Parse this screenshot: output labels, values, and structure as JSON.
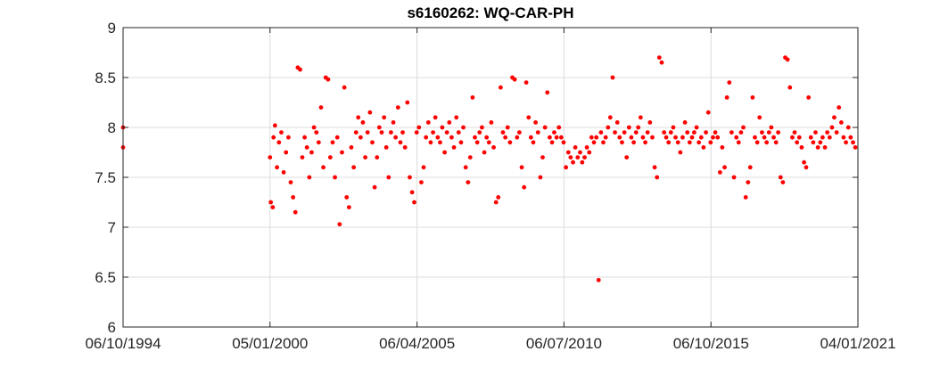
{
  "chart_data": {
    "type": "scatter",
    "title": "s6160262: WQ-CAR-PH",
    "xlabel": "",
    "ylabel": "",
    "xlim": [
      "1994-10-06",
      "2021-01-04"
    ],
    "ylim": [
      6,
      9
    ],
    "x_ticks": [
      "1994-10-06",
      "2000-01-05",
      "2005-04-06",
      "2010-07-06",
      "2015-10-06",
      "2021-01-04"
    ],
    "x_tick_labels": [
      "06/10/1994",
      "05/01/2000",
      "06/04/2005",
      "06/07/2010",
      "06/10/2015",
      "04/01/2021"
    ],
    "y_ticks": [
      6,
      6.5,
      7,
      7.5,
      8,
      8.5,
      9
    ],
    "y_tick_labels": [
      "6",
      "6.5",
      "7",
      "7.5",
      "8",
      "8.5",
      "9"
    ],
    "grid": true,
    "marker_color": "#ff0000",
    "series": [
      {
        "points": [
          [
            "1994-10-06",
            8.0
          ],
          [
            "1994-10-06",
            7.8
          ],
          [
            "2000-01-05",
            7.7
          ],
          [
            "2000-01-15",
            7.25
          ],
          [
            "2000-02-10",
            7.2
          ],
          [
            "2000-02-20",
            7.9
          ],
          [
            "2000-03-10",
            8.02
          ],
          [
            "2000-04-05",
            7.6
          ],
          [
            "2000-05-01",
            7.85
          ],
          [
            "2000-06-01",
            7.95
          ],
          [
            "2000-07-01",
            7.55
          ],
          [
            "2000-08-01",
            7.75
          ],
          [
            "2000-09-01",
            7.9
          ],
          [
            "2000-10-01",
            7.45
          ],
          [
            "2000-11-01",
            7.3
          ],
          [
            "2000-12-01",
            7.15
          ],
          [
            "2001-01-01",
            8.6
          ],
          [
            "2001-02-01",
            8.58
          ],
          [
            "2001-03-01",
            7.7
          ],
          [
            "2001-04-01",
            7.9
          ],
          [
            "2001-05-01",
            7.8
          ],
          [
            "2001-06-01",
            7.5
          ],
          [
            "2001-07-01",
            7.75
          ],
          [
            "2001-08-01",
            8.0
          ],
          [
            "2001-09-01",
            7.95
          ],
          [
            "2001-10-01",
            7.85
          ],
          [
            "2001-11-01",
            8.2
          ],
          [
            "2001-12-01",
            7.6
          ],
          [
            "2002-01-01",
            8.5
          ],
          [
            "2002-02-01",
            8.48
          ],
          [
            "2002-03-01",
            7.7
          ],
          [
            "2002-04-01",
            7.85
          ],
          [
            "2002-05-01",
            7.5
          ],
          [
            "2002-06-01",
            7.9
          ],
          [
            "2002-07-01",
            7.03
          ],
          [
            "2002-08-01",
            7.75
          ],
          [
            "2002-09-01",
            8.4
          ],
          [
            "2002-10-01",
            7.3
          ],
          [
            "2002-11-01",
            7.2
          ],
          [
            "2002-12-01",
            7.8
          ],
          [
            "2003-01-01",
            7.6
          ],
          [
            "2003-02-01",
            7.95
          ],
          [
            "2003-03-01",
            8.1
          ],
          [
            "2003-04-01",
            7.9
          ],
          [
            "2003-05-01",
            8.05
          ],
          [
            "2003-06-01",
            7.7
          ],
          [
            "2003-07-01",
            7.95
          ],
          [
            "2003-08-01",
            8.15
          ],
          [
            "2003-09-01",
            7.85
          ],
          [
            "2003-10-01",
            7.4
          ],
          [
            "2003-11-01",
            7.7
          ],
          [
            "2003-12-01",
            8.0
          ],
          [
            "2004-01-01",
            7.95
          ],
          [
            "2004-02-01",
            8.1
          ],
          [
            "2004-03-01",
            7.8
          ],
          [
            "2004-04-01",
            7.5
          ],
          [
            "2004-05-01",
            7.95
          ],
          [
            "2004-06-01",
            8.05
          ],
          [
            "2004-07-01",
            7.9
          ],
          [
            "2004-08-01",
            8.2
          ],
          [
            "2004-09-01",
            7.85
          ],
          [
            "2004-10-01",
            7.95
          ],
          [
            "2004-11-01",
            7.8
          ],
          [
            "2004-12-01",
            8.25
          ],
          [
            "2005-01-01",
            7.5
          ],
          [
            "2005-02-01",
            7.35
          ],
          [
            "2005-03-01",
            7.25
          ],
          [
            "2005-04-01",
            7.95
          ],
          [
            "2005-05-01",
            8.0
          ],
          [
            "2005-06-01",
            7.45
          ],
          [
            "2005-07-01",
            7.6
          ],
          [
            "2005-08-01",
            7.9
          ],
          [
            "2005-09-01",
            8.05
          ],
          [
            "2005-10-01",
            7.85
          ],
          [
            "2005-11-01",
            7.95
          ],
          [
            "2005-12-01",
            8.1
          ],
          [
            "2006-01-01",
            7.9
          ],
          [
            "2006-02-01",
            7.85
          ],
          [
            "2006-03-01",
            8.0
          ],
          [
            "2006-04-01",
            7.75
          ],
          [
            "2006-05-01",
            7.95
          ],
          [
            "2006-06-01",
            8.05
          ],
          [
            "2006-07-01",
            7.9
          ],
          [
            "2006-08-01",
            7.8
          ],
          [
            "2006-09-01",
            8.1
          ],
          [
            "2006-10-01",
            7.95
          ],
          [
            "2006-11-01",
            7.85
          ],
          [
            "2006-12-01",
            8.0
          ],
          [
            "2007-01-01",
            7.6
          ],
          [
            "2007-02-01",
            7.45
          ],
          [
            "2007-03-01",
            7.7
          ],
          [
            "2007-04-01",
            8.3
          ],
          [
            "2007-05-01",
            7.9
          ],
          [
            "2007-06-01",
            7.85
          ],
          [
            "2007-07-01",
            7.95
          ],
          [
            "2007-08-01",
            8.0
          ],
          [
            "2007-09-01",
            7.75
          ],
          [
            "2007-10-01",
            7.9
          ],
          [
            "2007-11-01",
            7.85
          ],
          [
            "2007-12-01",
            8.05
          ],
          [
            "2008-01-01",
            7.8
          ],
          [
            "2008-02-01",
            7.25
          ],
          [
            "2008-03-01",
            7.3
          ],
          [
            "2008-04-01",
            8.4
          ],
          [
            "2008-05-01",
            7.95
          ],
          [
            "2008-06-01",
            7.9
          ],
          [
            "2008-07-01",
            8.0
          ],
          [
            "2008-08-01",
            7.85
          ],
          [
            "2008-09-01",
            8.5
          ],
          [
            "2008-10-01",
            8.48
          ],
          [
            "2008-11-01",
            7.9
          ],
          [
            "2008-12-01",
            7.95
          ],
          [
            "2009-01-01",
            7.6
          ],
          [
            "2009-02-01",
            7.4
          ],
          [
            "2009-03-01",
            8.45
          ],
          [
            "2009-04-01",
            8.1
          ],
          [
            "2009-05-01",
            7.9
          ],
          [
            "2009-06-01",
            7.85
          ],
          [
            "2009-07-01",
            8.05
          ],
          [
            "2009-08-01",
            7.95
          ],
          [
            "2009-09-01",
            7.5
          ],
          [
            "2009-10-01",
            7.7
          ],
          [
            "2009-11-01",
            8.0
          ],
          [
            "2009-12-01",
            8.35
          ],
          [
            "2010-01-01",
            7.9
          ],
          [
            "2010-02-01",
            7.85
          ],
          [
            "2010-03-01",
            7.95
          ],
          [
            "2010-04-01",
            7.9
          ],
          [
            "2010-05-01",
            8.0
          ],
          [
            "2010-06-01",
            7.9
          ],
          [
            "2010-07-01",
            7.85
          ],
          [
            "2010-08-01",
            7.6
          ],
          [
            "2010-09-01",
            7.75
          ],
          [
            "2010-10-01",
            7.7
          ],
          [
            "2010-11-01",
            7.65
          ],
          [
            "2010-12-01",
            7.8
          ],
          [
            "2011-01-01",
            7.7
          ],
          [
            "2011-02-01",
            7.75
          ],
          [
            "2011-03-01",
            7.65
          ],
          [
            "2011-04-01",
            7.7
          ],
          [
            "2011-05-01",
            7.8
          ],
          [
            "2011-06-01",
            7.75
          ],
          [
            "2011-07-01",
            7.9
          ],
          [
            "2011-08-01",
            7.85
          ],
          [
            "2011-09-01",
            7.9
          ],
          [
            "2011-10-01",
            6.47
          ],
          [
            "2011-11-01",
            7.95
          ],
          [
            "2011-12-01",
            7.85
          ],
          [
            "2012-01-01",
            7.9
          ],
          [
            "2012-02-01",
            8.0
          ],
          [
            "2012-03-01",
            8.1
          ],
          [
            "2012-04-01",
            8.5
          ],
          [
            "2012-05-01",
            7.95
          ],
          [
            "2012-06-01",
            8.05
          ],
          [
            "2012-07-01",
            7.9
          ],
          [
            "2012-08-01",
            7.85
          ],
          [
            "2012-09-01",
            7.95
          ],
          [
            "2012-10-01",
            7.7
          ],
          [
            "2012-11-01",
            8.0
          ],
          [
            "2012-12-01",
            7.9
          ],
          [
            "2013-01-01",
            7.85
          ],
          [
            "2013-02-01",
            7.95
          ],
          [
            "2013-03-01",
            8.0
          ],
          [
            "2013-04-01",
            8.1
          ],
          [
            "2013-05-01",
            7.9
          ],
          [
            "2013-06-01",
            7.85
          ],
          [
            "2013-07-01",
            7.95
          ],
          [
            "2013-08-01",
            8.05
          ],
          [
            "2013-09-01",
            7.9
          ],
          [
            "2013-10-01",
            7.6
          ],
          [
            "2013-11-01",
            7.5
          ],
          [
            "2013-12-01",
            8.7
          ],
          [
            "2014-01-01",
            8.65
          ],
          [
            "2014-02-01",
            7.95
          ],
          [
            "2014-03-01",
            7.9
          ],
          [
            "2014-04-01",
            7.85
          ],
          [
            "2014-05-01",
            7.95
          ],
          [
            "2014-06-01",
            8.0
          ],
          [
            "2014-07-01",
            7.9
          ],
          [
            "2014-08-01",
            7.85
          ],
          [
            "2014-09-01",
            7.75
          ],
          [
            "2014-10-01",
            7.9
          ],
          [
            "2014-11-01",
            8.05
          ],
          [
            "2014-12-01",
            7.95
          ],
          [
            "2015-01-01",
            7.85
          ],
          [
            "2015-02-01",
            7.9
          ],
          [
            "2015-03-01",
            7.95
          ],
          [
            "2015-04-01",
            8.0
          ],
          [
            "2015-05-01",
            7.85
          ],
          [
            "2015-06-01",
            7.9
          ],
          [
            "2015-07-01",
            7.8
          ],
          [
            "2015-08-01",
            7.95
          ],
          [
            "2015-09-01",
            8.15
          ],
          [
            "2015-10-01",
            7.85
          ],
          [
            "2015-11-01",
            7.9
          ],
          [
            "2015-12-01",
            7.95
          ],
          [
            "2016-01-01",
            7.9
          ],
          [
            "2016-02-01",
            7.55
          ],
          [
            "2016-03-01",
            7.8
          ],
          [
            "2016-04-01",
            7.6
          ],
          [
            "2016-05-01",
            8.3
          ],
          [
            "2016-06-01",
            8.45
          ],
          [
            "2016-07-01",
            7.95
          ],
          [
            "2016-08-01",
            7.5
          ],
          [
            "2016-09-01",
            7.9
          ],
          [
            "2016-10-01",
            7.85
          ],
          [
            "2016-11-01",
            7.95
          ],
          [
            "2016-12-01",
            8.0
          ],
          [
            "2017-01-01",
            7.3
          ],
          [
            "2017-02-01",
            7.45
          ],
          [
            "2017-03-01",
            7.6
          ],
          [
            "2017-04-01",
            8.3
          ],
          [
            "2017-05-01",
            7.9
          ],
          [
            "2017-06-01",
            7.85
          ],
          [
            "2017-07-01",
            8.1
          ],
          [
            "2017-08-01",
            7.95
          ],
          [
            "2017-09-01",
            7.9
          ],
          [
            "2017-10-01",
            7.85
          ],
          [
            "2017-11-01",
            7.95
          ],
          [
            "2017-12-01",
            8.0
          ],
          [
            "2018-01-01",
            7.9
          ],
          [
            "2018-02-01",
            7.85
          ],
          [
            "2018-03-01",
            7.95
          ],
          [
            "2018-04-01",
            7.5
          ],
          [
            "2018-05-01",
            7.45
          ],
          [
            "2018-06-01",
            8.7
          ],
          [
            "2018-07-01",
            8.68
          ],
          [
            "2018-08-01",
            8.4
          ],
          [
            "2018-09-01",
            7.9
          ],
          [
            "2018-10-01",
            7.95
          ],
          [
            "2018-11-01",
            7.85
          ],
          [
            "2018-12-01",
            7.9
          ],
          [
            "2019-01-01",
            7.8
          ],
          [
            "2019-02-01",
            7.65
          ],
          [
            "2019-03-01",
            7.6
          ],
          [
            "2019-04-01",
            8.3
          ],
          [
            "2019-05-01",
            7.9
          ],
          [
            "2019-06-01",
            7.85
          ],
          [
            "2019-07-01",
            7.95
          ],
          [
            "2019-08-01",
            7.8
          ],
          [
            "2019-09-01",
            7.85
          ],
          [
            "2019-10-01",
            7.9
          ],
          [
            "2019-11-01",
            7.8
          ],
          [
            "2019-12-01",
            7.95
          ],
          [
            "2020-01-01",
            7.9
          ],
          [
            "2020-02-01",
            8.0
          ],
          [
            "2020-03-01",
            8.1
          ],
          [
            "2020-04-01",
            7.95
          ],
          [
            "2020-05-01",
            8.2
          ],
          [
            "2020-06-01",
            8.05
          ],
          [
            "2020-07-01",
            7.9
          ],
          [
            "2020-08-01",
            7.85
          ],
          [
            "2020-09-01",
            8.0
          ],
          [
            "2020-10-01",
            7.9
          ],
          [
            "2020-11-01",
            7.85
          ],
          [
            "2020-12-01",
            7.8
          ]
        ]
      }
    ]
  }
}
